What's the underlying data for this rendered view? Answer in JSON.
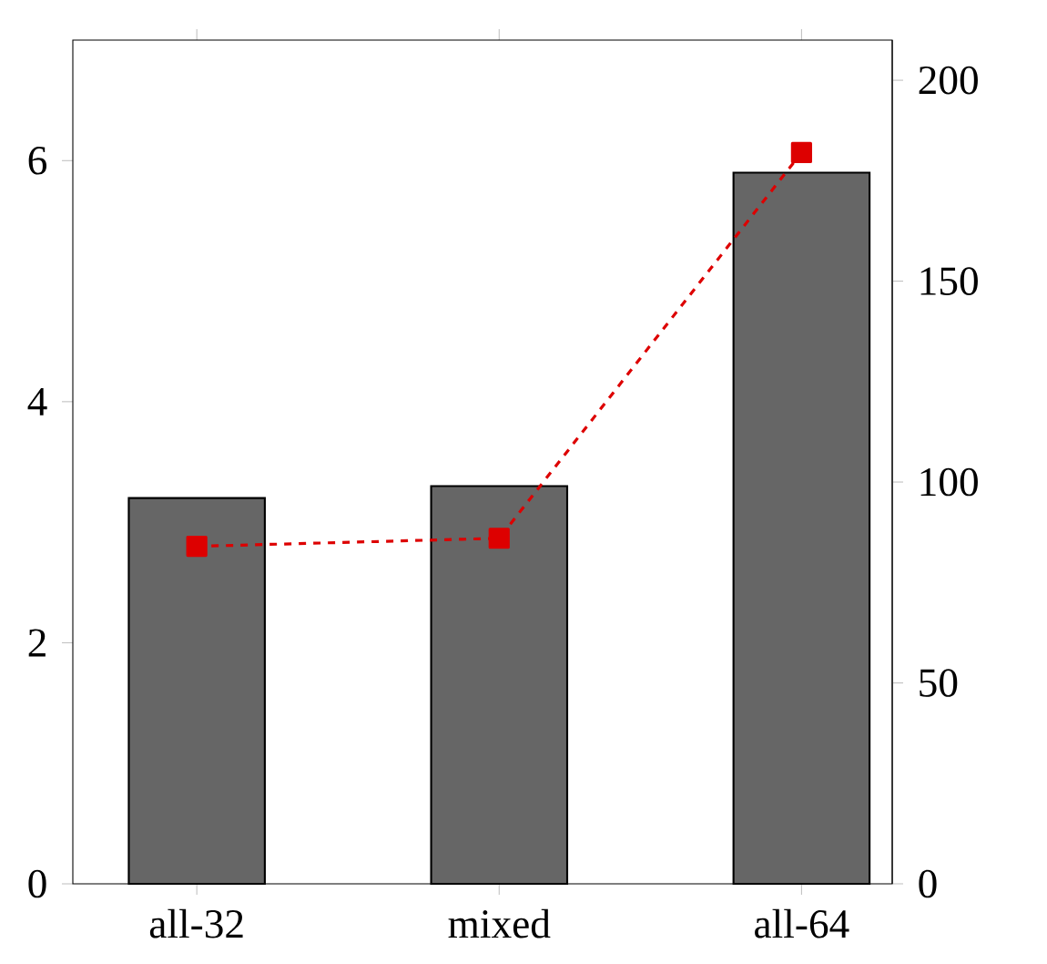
{
  "chart_data": {
    "type": "bar",
    "categories": [
      "all-32",
      "mixed",
      "all-64"
    ],
    "series": [
      {
        "color": "#666666",
        "values": [
          3.2,
          3.3,
          5.9
        ]
      },
      {
        "type": "line",
        "axis": "y2",
        "color": "#dd0000",
        "marker": "square",
        "line_style": "dashed",
        "values": [
          84,
          86,
          182
        ]
      }
    ],
    "ylim": [
      0,
      7
    ],
    "yticks": [
      0,
      2,
      4,
      6
    ],
    "y2lim": [
      0,
      210
    ],
    "y2ticks": [
      0,
      50,
      100,
      150,
      200
    ]
  }
}
